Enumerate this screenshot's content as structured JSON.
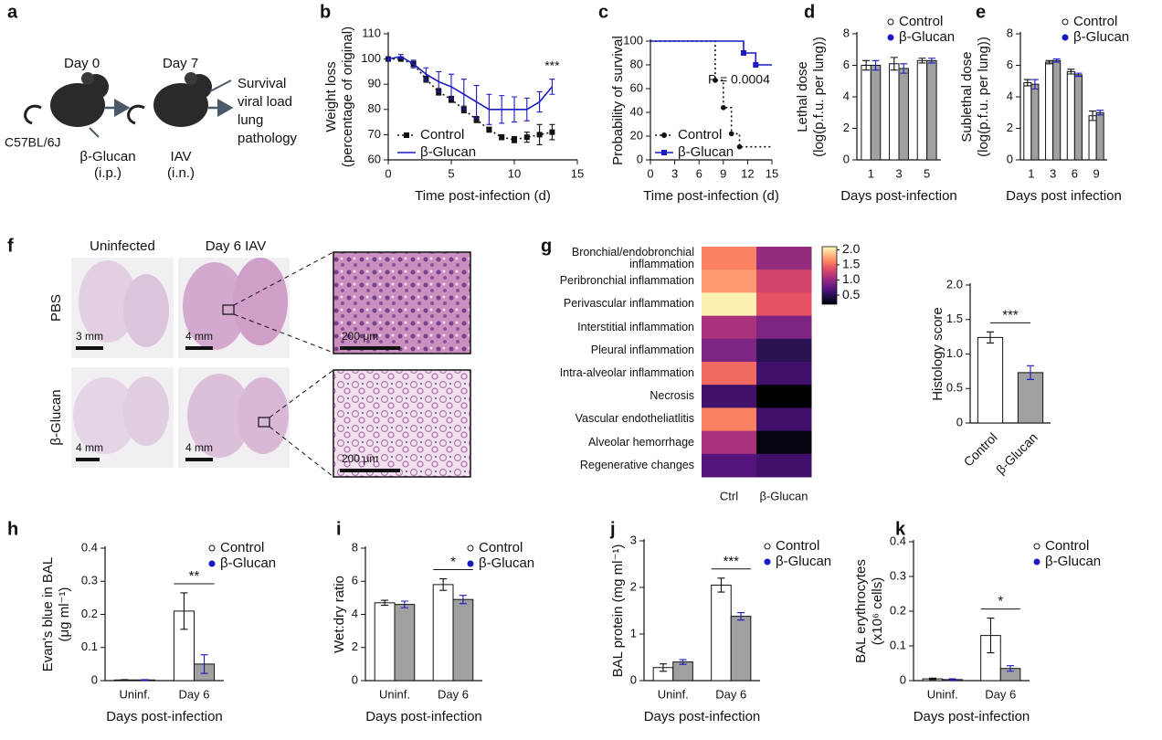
{
  "panel_labels": [
    "a",
    "b",
    "c",
    "d",
    "e",
    "f",
    "g",
    "h",
    "i",
    "j",
    "k"
  ],
  "schematic": {
    "day0": "Day 0",
    "day7": "Day 7",
    "strain": "C57BL/6J",
    "treatment": [
      "β-Glucan",
      "(i.p.)"
    ],
    "infection": [
      "IAV",
      "(i.n.)"
    ],
    "readouts": [
      "Survival",
      "viral load",
      "lung",
      "pathology"
    ]
  },
  "histology_images": {
    "columns": [
      "Uninfected",
      "Day 6 IAV"
    ],
    "rows": [
      "PBS",
      "β-Glucan"
    ],
    "scale_bars": [
      "3 mm",
      "4 mm",
      "200 μm",
      "4 mm",
      "4 mm",
      "200 μm"
    ]
  },
  "chart_data": [
    {
      "type": "line",
      "xlabel": "Time post-infection (d)",
      "ylabel": [
        "Weight loss",
        "(percentage of original)"
      ],
      "x": [
        0,
        1,
        2,
        3,
        4,
        5,
        6,
        7,
        8,
        9,
        10,
        11,
        12,
        13
      ],
      "xlim": [
        0,
        15
      ],
      "xticks": [
        0,
        5,
        10,
        15
      ],
      "ylim": [
        60,
        110
      ],
      "yticks": [
        60,
        70,
        80,
        90,
        100,
        110
      ],
      "annotation": "***",
      "series": [
        {
          "name": "Control",
          "color": "#111111",
          "line_style": "dotted",
          "marker": "square",
          "values": [
            100,
            100,
            98,
            92,
            87,
            84,
            80,
            76,
            72,
            69,
            68,
            69,
            70,
            71
          ],
          "errors": [
            0.5,
            0.5,
            1,
            1.2,
            1.3,
            1.2,
            1.3,
            1.2,
            1,
            1,
            1.2,
            2,
            4,
            3
          ]
        },
        {
          "name": "β-Glucan",
          "color": "#1a1ac0",
          "line_style": "solid",
          "marker": "none",
          "values": [
            100,
            101,
            98,
            94,
            91,
            89,
            86,
            83,
            80,
            80,
            80,
            80,
            83,
            89
          ],
          "errors": [
            0.5,
            0.8,
            1.5,
            2.5,
            4,
            5,
            6,
            6.5,
            6,
            5.5,
            5,
            4.5,
            4,
            3
          ]
        }
      ]
    },
    {
      "type": "line",
      "step": true,
      "xlabel": "Time post-infection (d)",
      "ylabel": [
        "Probability of survival"
      ],
      "xlim": [
        0,
        15
      ],
      "xticks": [
        0,
        3,
        6,
        9,
        12,
        15
      ],
      "ylim": [
        0,
        100
      ],
      "yticks": [
        0,
        20,
        40,
        60,
        80,
        100
      ],
      "annotation": "P = 0.0004",
      "series": [
        {
          "name": "Control",
          "color": "#111111",
          "line_style": "dotted",
          "marker": "circle",
          "x": [
            0,
            8,
            9,
            10,
            11,
            15
          ],
          "values": [
            100,
            67,
            44,
            22,
            11,
            11
          ]
        },
        {
          "name": "β-Glucan",
          "color": "#1a1ac0",
          "line_style": "solid",
          "marker": "square",
          "x": [
            0,
            11.5,
            13,
            15
          ],
          "values": [
            100,
            90,
            80,
            80
          ]
        }
      ]
    },
    {
      "type": "bar",
      "xlabel": "Days post-infection",
      "ylabel": [
        "Lethal dose",
        "(log(p.f.u. per lung))"
      ],
      "categories": [
        "1",
        "3",
        "5"
      ],
      "ylim": [
        0,
        8
      ],
      "yticks": [
        0,
        2,
        4,
        6,
        8
      ],
      "series": [
        {
          "name": "Control",
          "color": "#ffffff",
          "marker_color": "#111111",
          "values": [
            6.0,
            6.1,
            6.3
          ],
          "errors": [
            0.3,
            0.4,
            0.15
          ]
        },
        {
          "name": "β-Glucan",
          "color": "#a0a0a0",
          "marker_color": "#1a1ac0",
          "values": [
            6.0,
            5.8,
            6.3
          ],
          "errors": [
            0.3,
            0.3,
            0.15
          ]
        }
      ]
    },
    {
      "type": "bar",
      "xlabel": "Days post infection",
      "ylabel": [
        "Sublethal dose",
        "(log(p.f.u. per lung))"
      ],
      "categories": [
        "1",
        "3",
        "6",
        "9"
      ],
      "ylim": [
        0,
        8
      ],
      "yticks": [
        0,
        2,
        4,
        6,
        8
      ],
      "series": [
        {
          "name": "Control",
          "color": "#ffffff",
          "marker_color": "#111111",
          "values": [
            4.9,
            6.2,
            5.6,
            2.8
          ],
          "errors": [
            0.2,
            0.1,
            0.15,
            0.3
          ]
        },
        {
          "name": "β-Glucan",
          "color": "#a0a0a0",
          "marker_color": "#1a1ac0",
          "values": [
            4.8,
            6.3,
            5.4,
            3.0
          ],
          "errors": [
            0.3,
            0.1,
            0.1,
            0.15
          ]
        }
      ]
    },
    {
      "type": "heatmap",
      "colormap": "magma",
      "clim": [
        0.2,
        2.1
      ],
      "cticks": [
        0.5,
        {
          "value": 1,
          "label": "1.0"
        },
        1.5,
        {
          "value": 2,
          "label": "2.0"
        }
      ],
      "columns": [
        "Ctrl",
        "β-Glucan"
      ],
      "rows": [
        "Bronchial/endobronchial inflammation",
        "Peribronchial inflammation",
        "Perivascular inflammation",
        "Interstitial inflammation",
        "Pleural inflammation",
        "Intra-alveolar inflammation",
        "Necrosis",
        "Vascular endotheliatlitis",
        "Alveolar hemorrhage",
        "Regenerative changes"
      ],
      "values": [
        [
          1.6,
          1.0
        ],
        [
          1.7,
          1.3
        ],
        [
          2.05,
          1.4
        ],
        [
          1.1,
          0.9
        ],
        [
          0.9,
          0.5
        ],
        [
          1.5,
          0.6
        ],
        [
          0.6,
          0.2
        ],
        [
          1.6,
          0.6
        ],
        [
          1.1,
          0.25
        ],
        [
          0.7,
          0.6
        ]
      ]
    },
    {
      "type": "bar",
      "ylabel": [
        "Histology score"
      ],
      "categories": [
        "Control",
        "β-Glucan"
      ],
      "ylim": [
        0,
        2
      ],
      "yticks": [
        0,
        0.5,
        {
          "value": 1,
          "label": "1.0"
        },
        1.5,
        {
          "value": 2,
          "label": "2.0"
        }
      ],
      "values": [
        1.24,
        0.73
      ],
      "errors": [
        0.08,
        0.1
      ],
      "colors": [
        "#ffffff",
        "#a0a0a0"
      ],
      "marker_colors": [
        "#111111",
        "#1a1ac0"
      ],
      "annotation": "***"
    },
    {
      "type": "bar",
      "xlabel": "Days post-infection",
      "ylabel": [
        "Evan's blue in BAL",
        "(μg ml⁻¹)"
      ],
      "categories": [
        "Uninf.",
        "Day 6"
      ],
      "ylim": [
        0,
        0.4
      ],
      "yticks": [
        0,
        0.1,
        0.2,
        0.3,
        0.4
      ],
      "annotation": "**",
      "series": [
        {
          "name": "Control",
          "color": "#ffffff",
          "marker_color": "#111111",
          "values": [
            0.002,
            0.21
          ],
          "errors": [
            0.001,
            0.055
          ]
        },
        {
          "name": "β-Glucan",
          "color": "#a0a0a0",
          "marker_color": "#1a1ac0",
          "values": [
            0.002,
            0.05
          ],
          "errors": [
            0.001,
            0.028
          ]
        }
      ]
    },
    {
      "type": "bar",
      "xlabel": "Days post-infection",
      "ylabel": [
        "Wet:dry ratio"
      ],
      "categories": [
        "Uninf.",
        "Day 6"
      ],
      "ylim": [
        0,
        8
      ],
      "yticks": [
        0,
        2,
        4,
        6,
        8
      ],
      "annotation": "*",
      "series": [
        {
          "name": "Control",
          "color": "#ffffff",
          "marker_color": "#111111",
          "values": [
            4.7,
            5.8
          ],
          "errors": [
            0.15,
            0.35
          ]
        },
        {
          "name": "β-Glucan",
          "color": "#a0a0a0",
          "marker_color": "#1a1ac0",
          "values": [
            4.6,
            4.9
          ],
          "errors": [
            0.2,
            0.25
          ]
        }
      ]
    },
    {
      "type": "bar",
      "xlabel": "Days post-infection",
      "ylabel": [
        "BAL protein (mg ml⁻¹)"
      ],
      "categories": [
        "Uninf.",
        "Day 6"
      ],
      "ylim": [
        0,
        3
      ],
      "yticks": [
        0,
        1,
        2,
        3
      ],
      "annotation": "***",
      "series": [
        {
          "name": "Control",
          "color": "#ffffff",
          "marker_color": "#111111",
          "values": [
            0.28,
            2.05
          ],
          "errors": [
            0.08,
            0.15
          ]
        },
        {
          "name": "β-Glucan",
          "color": "#a0a0a0",
          "marker_color": "#1a1ac0",
          "values": [
            0.4,
            1.38
          ],
          "errors": [
            0.05,
            0.08
          ]
        }
      ]
    },
    {
      "type": "bar",
      "xlabel": "Days post-infection",
      "ylabel": [
        "BAL erythrocytes",
        "(x10⁶ cells)"
      ],
      "categories": [
        "Uninf.",
        "Day 6"
      ],
      "ylim": [
        0,
        0.4
      ],
      "yticks": [
        0,
        0.1,
        0.2,
        0.3,
        0.4
      ],
      "annotation": "*",
      "series": [
        {
          "name": "Control",
          "color": "#ffffff",
          "marker_color": "#111111",
          "values": [
            0.005,
            0.13
          ],
          "errors": [
            0.002,
            0.05
          ]
        },
        {
          "name": "β-Glucan",
          "color": "#a0a0a0",
          "marker_color": "#1a1ac0",
          "values": [
            0.003,
            0.035
          ],
          "errors": [
            0.002,
            0.008
          ]
        }
      ]
    }
  ]
}
